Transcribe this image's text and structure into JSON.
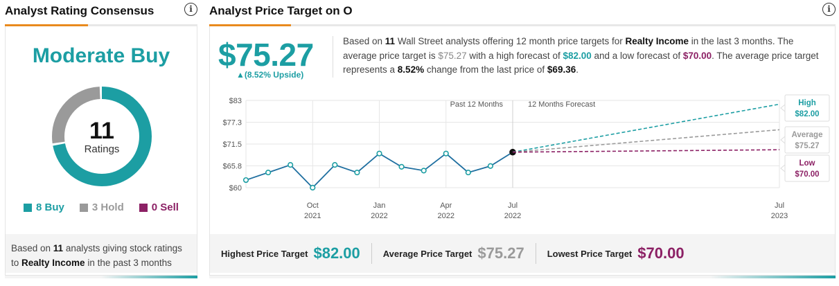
{
  "left": {
    "title": "Analyst Rating Consensus",
    "consensus": "Moderate Buy",
    "total": "11",
    "total_label": "Ratings",
    "legend": [
      {
        "label": "8 Buy",
        "count": 8,
        "color": "#1c9ea3"
      },
      {
        "label": "3 Hold",
        "count": 3,
        "color": "#9a9a9a"
      },
      {
        "label": "0 Sell",
        "count": 0,
        "color": "#8c2165"
      }
    ],
    "footer_pre": "Based on ",
    "footer_count": "11",
    "footer_mid": " analysts giving stock ratings to ",
    "footer_company": "Realty Income",
    "footer_post": " in the past 3 months"
  },
  "right": {
    "title": "Analyst Price Target on O",
    "price": "$75.27",
    "upside": "▲(8.52% Upside)",
    "desc": {
      "p1": "Based on ",
      "n": "11",
      "p2": " Wall Street analysts offering 12 month price targets for ",
      "company": "Realty Income",
      "p3": " in the last 3 months. The average price target is ",
      "avg": "$75.27",
      "p4": " with a high forecast of ",
      "high": "$82.00",
      "p5": " and a low forecast of ",
      "low": "$70.00",
      "p6": ". The average price target represents a ",
      "pct": "8.52%",
      "p7": " change from the last price of ",
      "last": "$69.36",
      "p8": "."
    },
    "bottom": {
      "highest_label": "Highest Price Target",
      "highest": "$82.00",
      "average_label": "Average Price Target",
      "average": "$75.27",
      "lowest_label": "Lowest Price Target",
      "lowest": "$70.00"
    }
  },
  "colors": {
    "teal": "#1c9ea3",
    "grey": "#9a9a9a",
    "purple": "#8c2165",
    "accent": "#e98a1e"
  },
  "chart_data": {
    "type": "line",
    "y_ticks": [
      "$83",
      "$77.3",
      "$71.5",
      "$65.8",
      "$60"
    ],
    "ylim": [
      60,
      83
    ],
    "period_labels": [
      "Past 12 Months",
      "12 Months Forecast"
    ],
    "x_ticks": [
      {
        "month": "Oct",
        "year": "2021",
        "m": 3
      },
      {
        "month": "Jan",
        "year": "2022",
        "m": 6
      },
      {
        "month": "Apr",
        "year": "2022",
        "m": 9
      },
      {
        "month": "Jul",
        "year": "2022",
        "m": 12
      },
      {
        "month": "Jul",
        "year": "2023",
        "m": 24
      }
    ],
    "history": [
      {
        "m": 0,
        "v": 62.0
      },
      {
        "m": 1,
        "v": 64.0
      },
      {
        "m": 2,
        "v": 66.0
      },
      {
        "m": 3,
        "v": 60.0
      },
      {
        "m": 4,
        "v": 66.0
      },
      {
        "m": 5,
        "v": 64.0
      },
      {
        "m": 6,
        "v": 69.0
      },
      {
        "m": 7,
        "v": 65.5
      },
      {
        "m": 8,
        "v": 64.5
      },
      {
        "m": 9,
        "v": 69.0
      },
      {
        "m": 10,
        "v": 64.0
      },
      {
        "m": 11,
        "v": 65.7
      },
      {
        "m": 12,
        "v": 69.36
      }
    ],
    "forecasts": [
      {
        "name": "High",
        "value": 82.0,
        "label": "$82.00",
        "color": "#1c9ea3"
      },
      {
        "name": "Average",
        "value": 75.27,
        "label": "$75.27",
        "color": "#9a9a9a"
      },
      {
        "name": "Low",
        "value": 70.0,
        "label": "$70.00",
        "color": "#8c2165"
      }
    ]
  }
}
